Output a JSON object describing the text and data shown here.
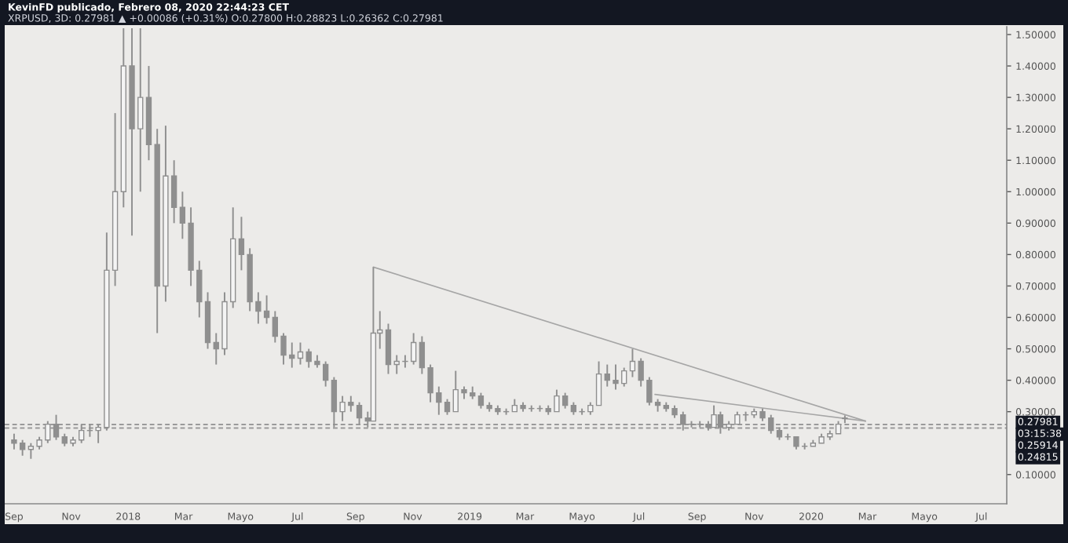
{
  "chart_data": {
    "type": "candlestick",
    "title": "KevinFD publicado, Febrero 08, 2020 22:44:23 CET",
    "subtitle": "XRPUSD, 3D: 0.27981 ▲ +0.00086 (+0.31%) O:0.27800 H:0.28823 L:0.26362 C:0.27981",
    "series": [
      {
        "type": "line",
        "color": "#a6a6a6",
        "x": [
          "2018-09-20",
          "2020-02-28"
        ],
        "values": [
          0.76,
          0.27
        ]
      },
      {
        "type": "line",
        "color": "#a6a6a6",
        "x": [
          "2019-07-18",
          "2020-02-28"
        ],
        "values": [
          0.355,
          0.27
        ]
      },
      {
        "color": "#8f8f8f",
        "x": [
          "2017-09-01",
          "2017-09-10",
          "2017-09-19",
          "2017-09-28",
          "2017-10-07",
          "2017-10-16",
          "2017-10-25",
          "2017-11-03",
          "2017-11-12",
          "2017-11-21",
          "2017-11-30",
          "2017-12-09",
          "2017-12-18",
          "2017-12-27",
          "2018-01-05",
          "2018-01-14",
          "2018-01-23",
          "2018-02-01",
          "2018-02-10",
          "2018-02-19",
          "2018-02-28",
          "2018-03-09",
          "2018-03-18",
          "2018-03-27",
          "2018-04-05",
          "2018-04-14",
          "2018-04-23",
          "2018-05-02",
          "2018-05-11",
          "2018-05-20",
          "2018-05-29",
          "2018-06-07",
          "2018-06-16",
          "2018-06-25",
          "2018-07-04",
          "2018-07-13",
          "2018-07-22",
          "2018-07-31",
          "2018-08-09",
          "2018-08-18",
          "2018-08-27",
          "2018-09-05",
          "2018-09-14",
          "2018-09-20",
          "2018-09-27",
          "2018-10-06",
          "2018-10-15",
          "2018-10-24",
          "2018-11-02",
          "2018-11-11",
          "2018-11-20",
          "2018-11-29",
          "2018-12-08",
          "2018-12-17",
          "2018-12-26",
          "2019-01-04",
          "2019-01-13",
          "2019-01-22",
          "2019-01-31",
          "2019-02-09",
          "2019-02-18",
          "2019-02-27",
          "2019-03-08",
          "2019-03-17",
          "2019-03-26",
          "2019-04-04",
          "2019-04-13",
          "2019-04-22",
          "2019-05-01",
          "2019-05-10",
          "2019-05-19",
          "2019-05-28",
          "2019-06-06",
          "2019-06-15",
          "2019-06-24",
          "2019-07-03",
          "2019-07-12",
          "2019-07-21",
          "2019-07-30",
          "2019-08-08",
          "2019-08-17",
          "2019-08-26",
          "2019-09-04",
          "2019-09-13",
          "2019-09-19",
          "2019-09-26",
          "2019-10-05",
          "2019-10-14",
          "2019-10-23",
          "2019-11-01",
          "2019-11-10",
          "2019-11-19",
          "2019-11-28",
          "2019-12-07",
          "2019-12-16",
          "2019-12-25",
          "2020-01-03",
          "2020-01-12",
          "2020-01-21",
          "2020-01-30",
          "2020-02-06"
        ],
        "ohlc": [
          [
            0.21,
            0.23,
            0.18,
            0.2
          ],
          [
            0.2,
            0.21,
            0.16,
            0.18
          ],
          [
            0.18,
            0.2,
            0.15,
            0.19
          ],
          [
            0.19,
            0.22,
            0.18,
            0.21
          ],
          [
            0.21,
            0.27,
            0.2,
            0.26
          ],
          [
            0.26,
            0.29,
            0.21,
            0.22
          ],
          [
            0.22,
            0.23,
            0.19,
            0.2
          ],
          [
            0.2,
            0.22,
            0.19,
            0.21
          ],
          [
            0.21,
            0.26,
            0.2,
            0.24
          ],
          [
            0.24,
            0.26,
            0.22,
            0.24
          ],
          [
            0.24,
            0.26,
            0.2,
            0.25
          ],
          [
            0.25,
            0.87,
            0.24,
            0.75
          ],
          [
            0.75,
            1.25,
            0.7,
            1.0
          ],
          [
            1.0,
            1.52,
            0.95,
            1.4
          ],
          [
            1.4,
            1.52,
            0.86,
            1.2
          ],
          [
            1.2,
            1.52,
            1.0,
            1.3
          ],
          [
            1.3,
            1.4,
            1.1,
            1.15
          ],
          [
            1.15,
            1.2,
            0.55,
            0.7
          ],
          [
            0.7,
            1.21,
            0.65,
            1.05
          ],
          [
            1.05,
            1.1,
            0.9,
            0.95
          ],
          [
            0.95,
            1.0,
            0.85,
            0.9
          ],
          [
            0.9,
            0.95,
            0.7,
            0.75
          ],
          [
            0.75,
            0.78,
            0.6,
            0.65
          ],
          [
            0.65,
            0.68,
            0.5,
            0.52
          ],
          [
            0.52,
            0.55,
            0.45,
            0.5
          ],
          [
            0.5,
            0.68,
            0.48,
            0.65
          ],
          [
            0.65,
            0.95,
            0.63,
            0.85
          ],
          [
            0.85,
            0.92,
            0.75,
            0.8
          ],
          [
            0.8,
            0.82,
            0.62,
            0.65
          ],
          [
            0.65,
            0.68,
            0.58,
            0.62
          ],
          [
            0.62,
            0.67,
            0.58,
            0.6
          ],
          [
            0.6,
            0.62,
            0.52,
            0.54
          ],
          [
            0.54,
            0.55,
            0.45,
            0.48
          ],
          [
            0.48,
            0.52,
            0.44,
            0.47
          ],
          [
            0.47,
            0.52,
            0.45,
            0.49
          ],
          [
            0.49,
            0.5,
            0.44,
            0.46
          ],
          [
            0.46,
            0.48,
            0.44,
            0.45
          ],
          [
            0.45,
            0.46,
            0.38,
            0.4
          ],
          [
            0.4,
            0.41,
            0.25,
            0.3
          ],
          [
            0.3,
            0.35,
            0.27,
            0.33
          ],
          [
            0.33,
            0.35,
            0.3,
            0.32
          ],
          [
            0.32,
            0.33,
            0.26,
            0.28
          ],
          [
            0.28,
            0.3,
            0.25,
            0.27
          ],
          [
            0.27,
            0.76,
            0.27,
            0.55
          ],
          [
            0.55,
            0.62,
            0.5,
            0.56
          ],
          [
            0.56,
            0.58,
            0.42,
            0.45
          ],
          [
            0.45,
            0.48,
            0.42,
            0.46
          ],
          [
            0.46,
            0.48,
            0.44,
            0.46
          ],
          [
            0.46,
            0.55,
            0.45,
            0.52
          ],
          [
            0.52,
            0.54,
            0.42,
            0.44
          ],
          [
            0.44,
            0.45,
            0.33,
            0.36
          ],
          [
            0.36,
            0.38,
            0.29,
            0.33
          ],
          [
            0.33,
            0.34,
            0.29,
            0.3
          ],
          [
            0.3,
            0.43,
            0.3,
            0.37
          ],
          [
            0.37,
            0.38,
            0.34,
            0.36
          ],
          [
            0.36,
            0.38,
            0.34,
            0.35
          ],
          [
            0.35,
            0.36,
            0.31,
            0.32
          ],
          [
            0.32,
            0.33,
            0.3,
            0.31
          ],
          [
            0.31,
            0.32,
            0.29,
            0.3
          ],
          [
            0.3,
            0.31,
            0.29,
            0.3
          ],
          [
            0.3,
            0.34,
            0.3,
            0.32
          ],
          [
            0.32,
            0.33,
            0.3,
            0.31
          ],
          [
            0.31,
            0.32,
            0.3,
            0.31
          ],
          [
            0.31,
            0.32,
            0.3,
            0.31
          ],
          [
            0.31,
            0.32,
            0.29,
            0.3
          ],
          [
            0.3,
            0.37,
            0.3,
            0.35
          ],
          [
            0.35,
            0.36,
            0.31,
            0.32
          ],
          [
            0.32,
            0.33,
            0.29,
            0.3
          ],
          [
            0.3,
            0.31,
            0.29,
            0.3
          ],
          [
            0.3,
            0.33,
            0.29,
            0.32
          ],
          [
            0.32,
            0.46,
            0.32,
            0.42
          ],
          [
            0.42,
            0.45,
            0.38,
            0.4
          ],
          [
            0.4,
            0.45,
            0.37,
            0.39
          ],
          [
            0.39,
            0.44,
            0.38,
            0.43
          ],
          [
            0.43,
            0.5,
            0.41,
            0.46
          ],
          [
            0.46,
            0.47,
            0.38,
            0.4
          ],
          [
            0.4,
            0.41,
            0.32,
            0.33
          ],
          [
            0.33,
            0.34,
            0.3,
            0.32
          ],
          [
            0.32,
            0.33,
            0.3,
            0.31
          ],
          [
            0.31,
            0.32,
            0.28,
            0.29
          ],
          [
            0.29,
            0.3,
            0.24,
            0.26
          ],
          [
            0.26,
            0.27,
            0.25,
            0.26
          ],
          [
            0.26,
            0.27,
            0.25,
            0.26
          ],
          [
            0.26,
            0.27,
            0.24,
            0.25
          ],
          [
            0.25,
            0.32,
            0.25,
            0.29
          ],
          [
            0.29,
            0.3,
            0.23,
            0.25
          ],
          [
            0.25,
            0.27,
            0.24,
            0.26
          ],
          [
            0.26,
            0.3,
            0.26,
            0.29
          ],
          [
            0.29,
            0.3,
            0.27,
            0.29
          ],
          [
            0.29,
            0.31,
            0.28,
            0.3
          ],
          [
            0.3,
            0.31,
            0.27,
            0.28
          ],
          [
            0.28,
            0.29,
            0.23,
            0.24
          ],
          [
            0.24,
            0.25,
            0.21,
            0.22
          ],
          [
            0.22,
            0.23,
            0.21,
            0.22
          ],
          [
            0.22,
            0.22,
            0.18,
            0.19
          ],
          [
            0.19,
            0.2,
            0.18,
            0.19
          ],
          [
            0.19,
            0.21,
            0.19,
            0.2
          ],
          [
            0.2,
            0.23,
            0.2,
            0.22
          ],
          [
            0.22,
            0.24,
            0.21,
            0.23
          ],
          [
            0.23,
            0.27,
            0.23,
            0.26
          ],
          [
            0.278,
            0.28823,
            0.26362,
            0.27981
          ]
        ]
      }
    ],
    "ref_lines": [
      {
        "axis": "y",
        "value": 0.25914,
        "label": "0.25914",
        "color": "#9a9a9a",
        "line_style": "dashed"
      },
      {
        "axis": "y",
        "value": 0.24815,
        "label": "0.24815",
        "color": "#9a9a9a",
        "line_style": "dashed"
      }
    ],
    "annotations": [
      "0.27981",
      "03:15:38"
    ],
    "xlim": [
      "2017-08-22",
      "2020-07-28"
    ],
    "xticks": [
      {
        "value": "2017-09-01",
        "label": "Sep"
      },
      {
        "value": "2017-11-01",
        "label": "Nov"
      },
      {
        "value": "2018-01-01",
        "label": "2018"
      },
      {
        "value": "2018-03-01",
        "label": "Mar"
      },
      {
        "value": "2018-05-01",
        "label": "Mayo"
      },
      {
        "value": "2018-07-01",
        "label": "Jul"
      },
      {
        "value": "2018-09-01",
        "label": "Sep"
      },
      {
        "value": "2018-11-01",
        "label": "Nov"
      },
      {
        "value": "2019-01-01",
        "label": "2019"
      },
      {
        "value": "2019-03-01",
        "label": "Mar"
      },
      {
        "value": "2019-05-01",
        "label": "Mayo"
      },
      {
        "value": "2019-07-01",
        "label": "Jul"
      },
      {
        "value": "2019-09-01",
        "label": "Sep"
      },
      {
        "value": "2019-11-01",
        "label": "Nov"
      },
      {
        "value": "2020-01-01",
        "label": "2020"
      },
      {
        "value": "2020-03-01",
        "label": "Mar"
      },
      {
        "value": "2020-05-01",
        "label": "Mayo"
      },
      {
        "value": "2020-07-01",
        "label": "Jul"
      }
    ],
    "ylim": [
      0.007,
      1.525
    ],
    "yticks": [
      {
        "value": 0.1,
        "label": "0.10000"
      },
      {
        "value": 0.3,
        "label": "0.30000"
      },
      {
        "value": 0.4,
        "label": "0.40000"
      },
      {
        "value": 0.5,
        "label": "0.50000"
      },
      {
        "value": 0.6,
        "label": "0.60000"
      },
      {
        "value": 0.7,
        "label": "0.70000"
      },
      {
        "value": 0.8,
        "label": "0.80000"
      },
      {
        "value": 0.9,
        "label": "0.90000"
      },
      {
        "value": 1.0,
        "label": "1.00000"
      },
      {
        "value": 1.1,
        "label": "1.10000"
      },
      {
        "value": 1.2,
        "label": "1.20000"
      },
      {
        "value": 1.3,
        "label": "1.30000"
      },
      {
        "value": 1.4,
        "label": "1.40000"
      },
      {
        "value": 1.5,
        "label": "1.50000"
      }
    ],
    "grid": false,
    "legend": false
  }
}
